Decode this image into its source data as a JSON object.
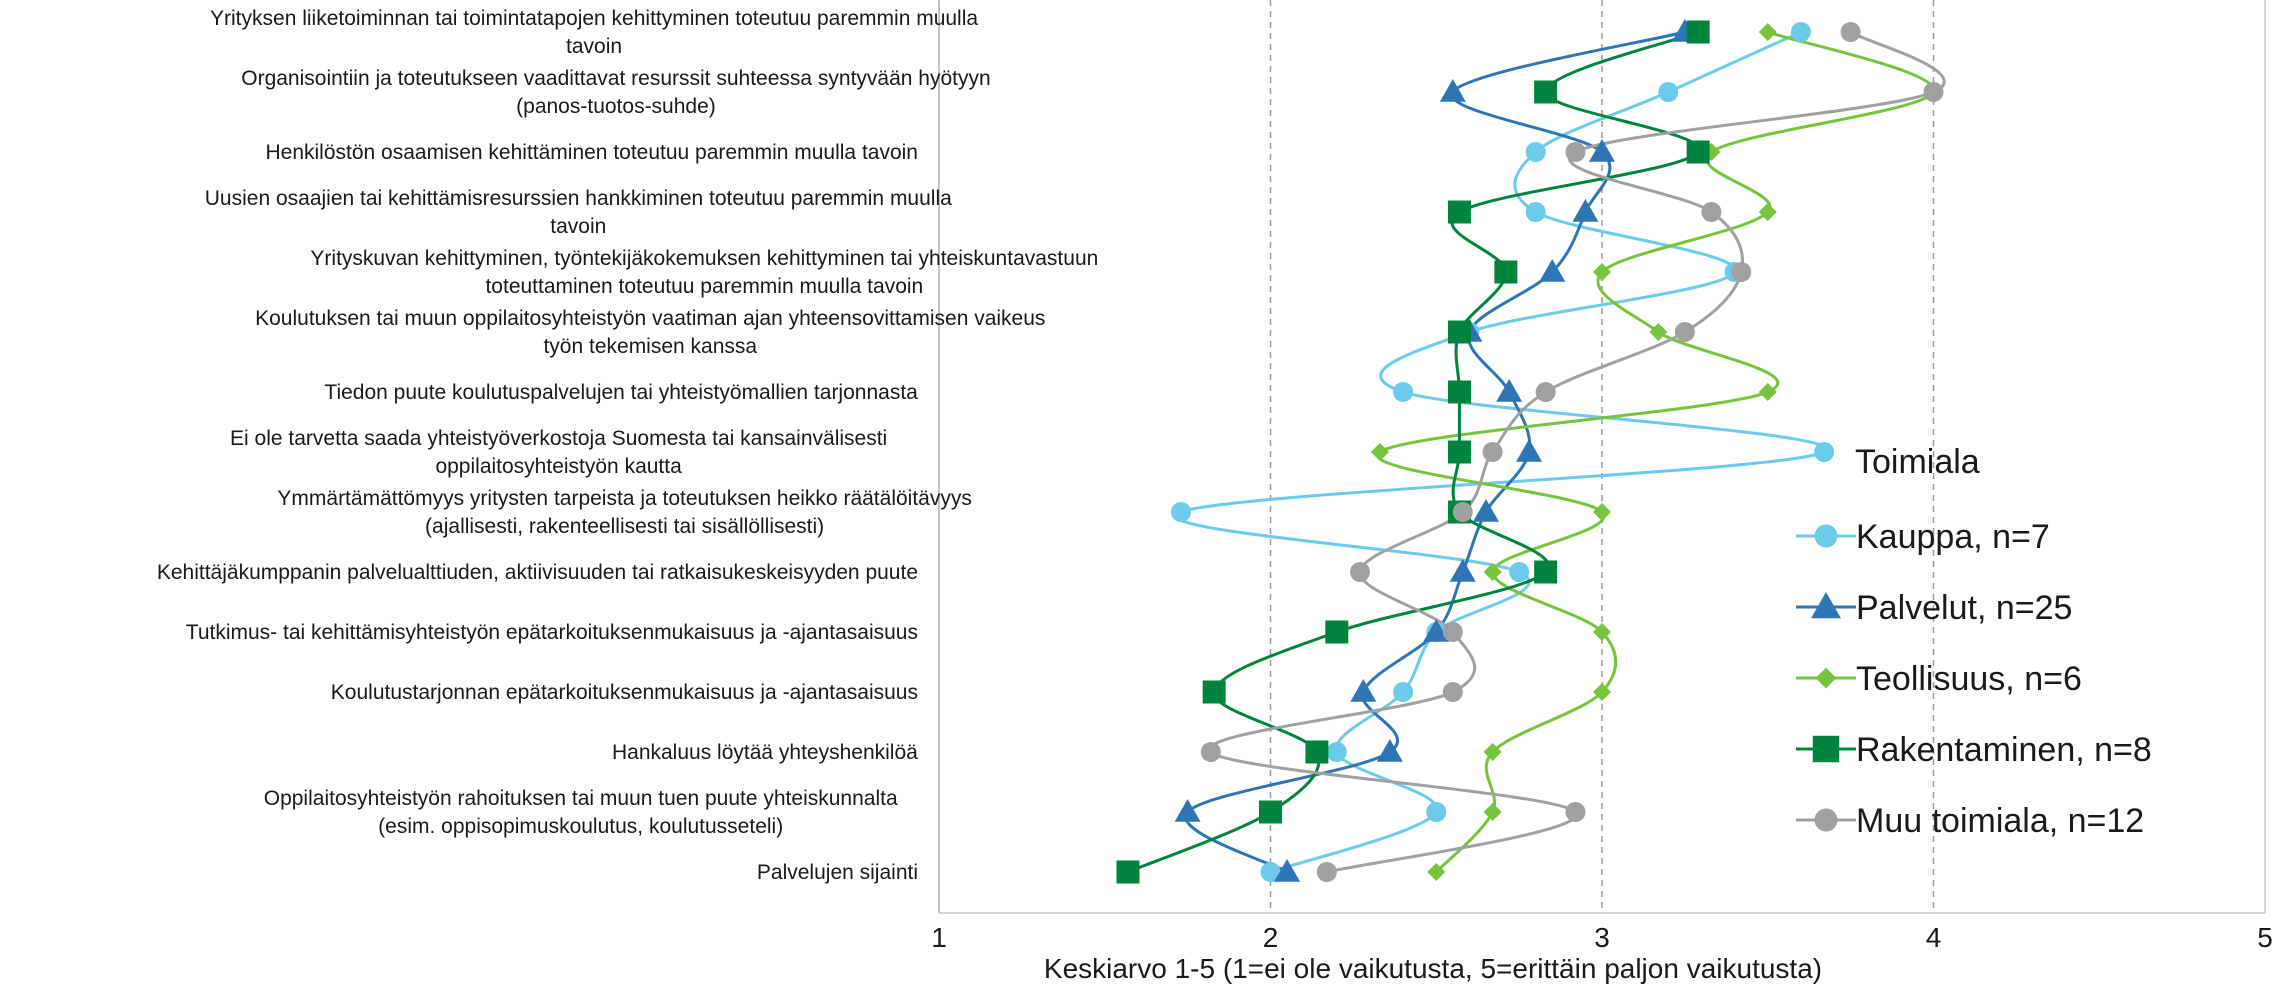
{
  "chart_data": {
    "type": "line",
    "orientation": "horizontal-value-axis",
    "xlabel": "Keskiarvo 1-5 (1=ei ole vaikutusta, 5=erittäin paljon vaikutusta)",
    "xlim": [
      1,
      5
    ],
    "xticks": [
      "1",
      "2",
      "3",
      "4",
      "5"
    ],
    "vertical_gridlines": "dashed",
    "legend_title": "Toimiala",
    "legend_position": "right",
    "categories": [
      [
        "Yrityksen liiketoiminnan tai toimintatapojen kehittyminen toteutuu paremmin muulla",
        "tavoin"
      ],
      [
        "Organisointiin ja toteutukseen vaadittavat resurssit suhteessa syntyvään hyötyyn",
        "(panos-tuotos-suhde)"
      ],
      [
        "Henkilöstön osaamisen kehittäminen toteutuu paremmin muulla tavoin"
      ],
      [
        "Uusien osaajien tai kehittämisresurssien hankkiminen toteutuu paremmin muulla",
        "tavoin"
      ],
      [
        "Yrityskuvan kehittyminen, työntekijäkokemuksen kehittyminen tai yhteiskuntavastuun",
        "toteuttaminen toteutuu paremmin muulla tavoin"
      ],
      [
        "Koulutuksen tai muun oppilaitosyhteistyön vaatiman ajan yhteensovittamisen vaikeus",
        "työn tekemisen kanssa"
      ],
      [
        "Tiedon puute koulutuspalvelujen tai yhteistyömallien tarjonnasta"
      ],
      [
        "Ei ole tarvetta saada yhteistyöverkostoja Suomesta tai kansainvälisesti",
        "oppilaitosyhteistyön kautta"
      ],
      [
        "Ymmärtämättömyys yritysten tarpeista ja toteutuksen heikko räätälöitävyys",
        "(ajallisesti, rakenteellisesti tai sisällöllisesti)"
      ],
      [
        "Kehittäjäkumppanin palvelualttiuden, aktiivisuuden tai ratkaisukeskeisyyden puute"
      ],
      [
        "Tutkimus- tai kehittämisyhteistyön epätarkoituksenmukaisuus ja -ajantasaisuus"
      ],
      [
        "Koulutustarjonnan epätarkoituksenmukaisuus ja -ajantasaisuus"
      ],
      [
        "Hankaluus löytää yhteyshenkilöä"
      ],
      [
        "Oppilaitosyhteistyön rahoituksen tai muun tuen puute yhteiskunnalta",
        "(esim. oppisopimuskoulutus, koulutusseteli)"
      ],
      [
        "Palvelujen sijainti"
      ]
    ],
    "series": [
      {
        "name": "Kauppa, n=7",
        "color": "#6ccbeb",
        "marker": "circle",
        "values": [
          3.6,
          3.2,
          2.8,
          2.8,
          3.4,
          2.6,
          2.4,
          3.67,
          1.73,
          2.75,
          2.5,
          2.4,
          2.2,
          2.5,
          2.0
        ]
      },
      {
        "name": "Palvelut, n=25",
        "color": "#2e75b6",
        "marker": "triangle",
        "values": [
          3.25,
          2.55,
          3.0,
          2.95,
          2.85,
          2.6,
          2.72,
          2.78,
          2.65,
          2.58,
          2.5,
          2.28,
          2.36,
          1.75,
          2.05
        ]
      },
      {
        "name": "Teollisuus, n=6",
        "color": "#76c43b",
        "marker": "diamond",
        "values": [
          3.5,
          4.0,
          3.33,
          3.5,
          3.0,
          3.17,
          3.5,
          2.33,
          3.0,
          2.67,
          3.0,
          3.0,
          2.67,
          2.67,
          2.5
        ]
      },
      {
        "name": "Rakentaminen, n=8",
        "color": "#00843d",
        "marker": "square",
        "values": [
          3.29,
          2.83,
          3.29,
          2.57,
          2.71,
          2.57,
          2.57,
          2.57,
          2.57,
          2.83,
          2.2,
          1.83,
          2.14,
          2.0,
          1.57
        ]
      },
      {
        "name": "Muu toimiala, n=12",
        "color": "#a0a0a0",
        "marker": "circle",
        "values": [
          3.75,
          4.0,
          2.92,
          3.33,
          3.42,
          3.25,
          2.83,
          2.67,
          2.58,
          2.27,
          2.55,
          2.55,
          1.82,
          2.92,
          2.17
        ]
      }
    ]
  }
}
